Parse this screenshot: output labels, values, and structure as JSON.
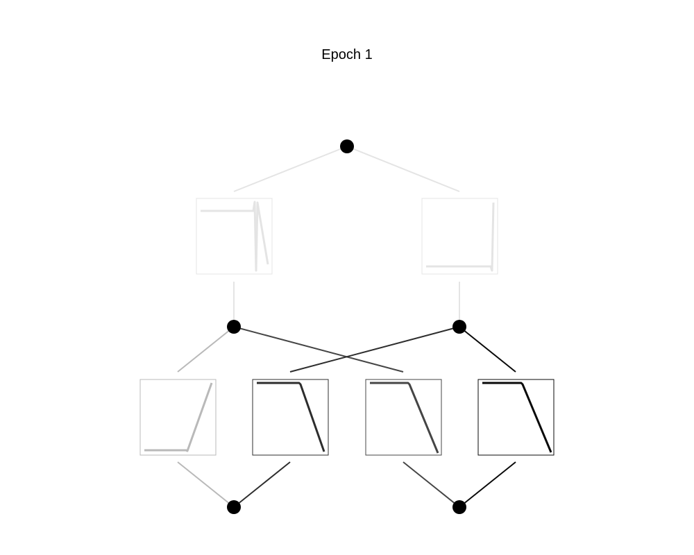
{
  "title": "Epoch 1",
  "colors": {
    "node": "#000000",
    "layer1_left": "#e4e4e4",
    "layer1_right": "#e4e4e4",
    "layer2_a": "#b9b9b9",
    "layer2_b": "#2d2d2d",
    "layer2_c": "#454545",
    "layer2_d": "#090909"
  },
  "nodes": [
    "input-node",
    "hidden-node-1",
    "hidden-node-2",
    "output-node-1",
    "output-node-2"
  ],
  "activation_plots": [
    {
      "id": "l1-left",
      "shape": "flat-then-spike-then-drop",
      "strength": 0.1
    },
    {
      "id": "l1-right",
      "shape": "flat-low-then-vertical-rise",
      "strength": 0.1
    },
    {
      "id": "l2-a",
      "shape": "flat-low-then-rise",
      "strength": 0.3
    },
    {
      "id": "l2-b",
      "shape": "flat-high-then-drop",
      "strength": 0.85
    },
    {
      "id": "l2-c",
      "shape": "flat-high-then-drop",
      "strength": 0.75
    },
    {
      "id": "l2-d",
      "shape": "flat-high-then-drop",
      "strength": 1.0
    }
  ]
}
